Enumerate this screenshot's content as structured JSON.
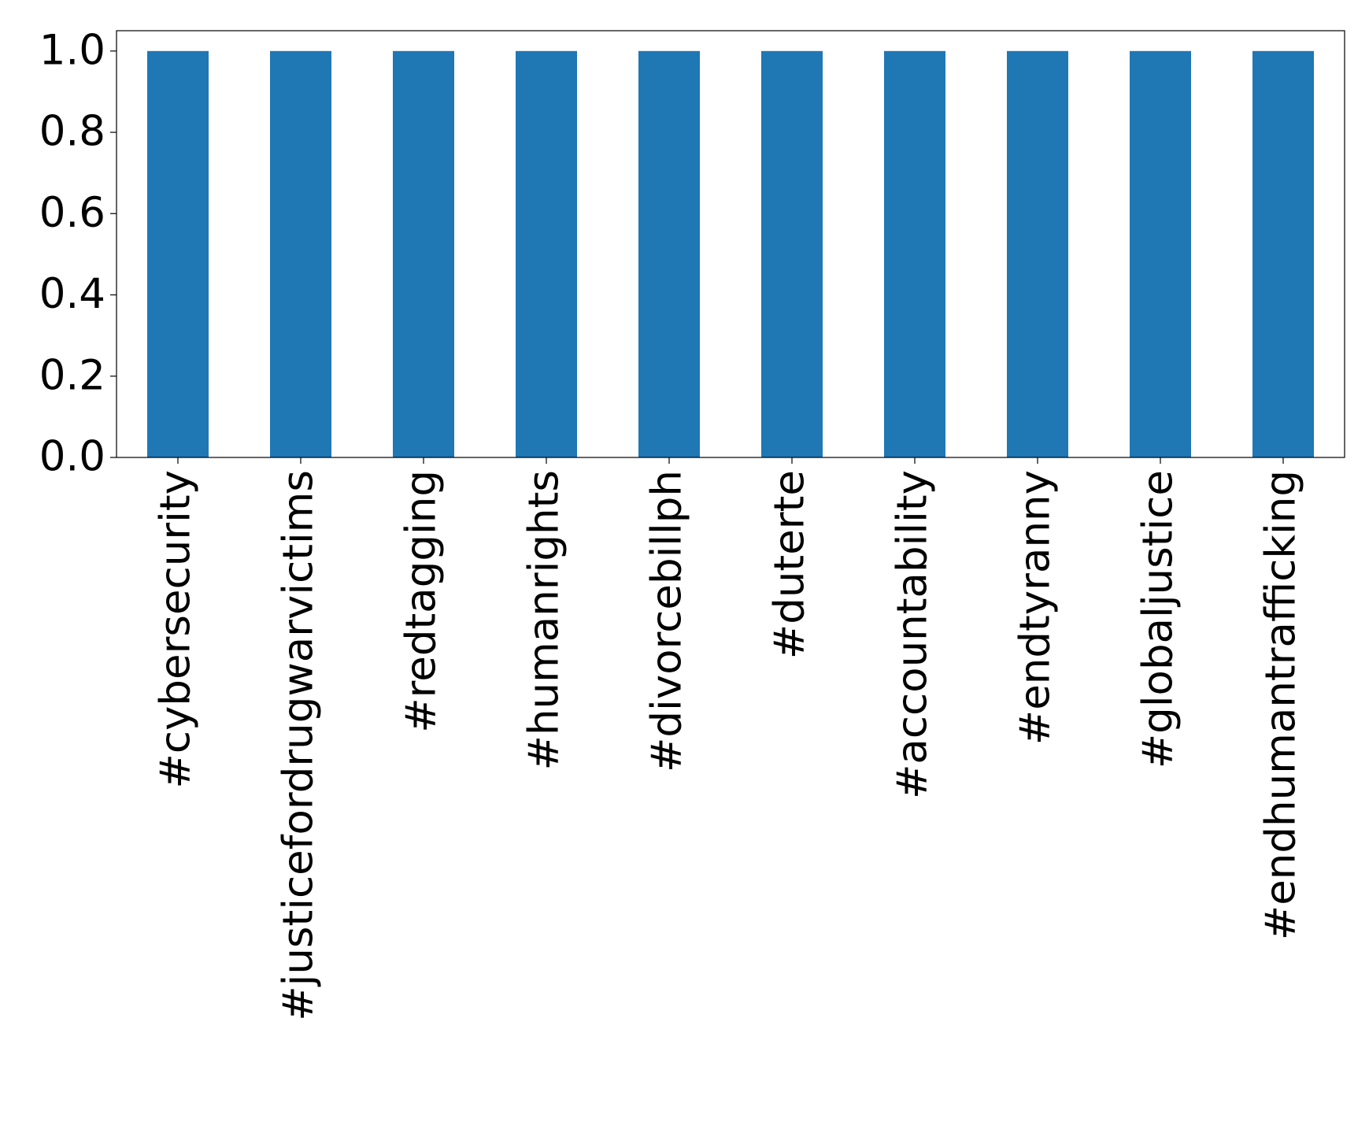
{
  "chart_data": {
    "type": "bar",
    "categories": [
      "#cybersecurity",
      "#justicefordrugwarvictims",
      "#redtagging",
      "#humanrights",
      "#divorcebillph",
      "#duterte",
      "#accountability",
      "#endtyranny",
      "#globaljustice",
      "#endhumantrafficking"
    ],
    "values": [
      1,
      1,
      1,
      1,
      1,
      1,
      1,
      1,
      1,
      1
    ],
    "color": "#1f77b4",
    "ylim": [
      0,
      1.05
    ],
    "yticks": [
      {
        "value": 0,
        "label": "0.0"
      },
      {
        "value": 0.2,
        "label": "0.2"
      },
      {
        "value": 0.4,
        "label": "0.4"
      },
      {
        "value": 0.6,
        "label": "0.6"
      },
      {
        "value": 0.8,
        "label": "0.8"
      },
      {
        "value": 1,
        "label": "1.0"
      }
    ],
    "grid": false
  }
}
